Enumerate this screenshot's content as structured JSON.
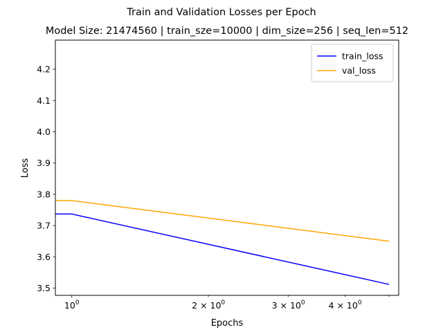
{
  "chart_data": {
    "type": "line",
    "suptitle": "Train and Validation Losses per Epoch",
    "title": "Model Size: 21474560 | train_sze=10000 | dim_size=256 | seq_len=512",
    "xlabel": "Epochs",
    "ylabel": "Loss",
    "xscale": "log",
    "xlim": [
      0.92,
      5.25
    ],
    "ylim": [
      3.477,
      4.293
    ],
    "x_ticks": [
      {
        "value": 1,
        "base": "10",
        "exp": "0"
      },
      {
        "value": 2,
        "base": "2 × 10",
        "exp": "0"
      },
      {
        "value": 3,
        "base": "3 × 10",
        "exp": "0"
      },
      {
        "value": 4,
        "base": "4 × 10",
        "exp": "0"
      }
    ],
    "y_ticks": [
      3.5,
      3.6,
      3.7,
      3.8,
      3.9,
      4.0,
      4.1,
      4.2
    ],
    "y_tick_labels": [
      "3.5",
      "3.6",
      "3.7",
      "3.8",
      "3.9",
      "4.0",
      "4.1",
      "4.2"
    ],
    "legend_position": "top-right",
    "series": [
      {
        "name": "train_loss",
        "color": "#0000ff",
        "x": [
          0,
          1,
          5
        ],
        "y": [
          3.737,
          3.737,
          3.512
        ]
      },
      {
        "name": "val_loss",
        "color": "#ffa500",
        "x": [
          0,
          1,
          5
        ],
        "y": [
          3.78,
          3.78,
          3.65
        ]
      }
    ]
  }
}
